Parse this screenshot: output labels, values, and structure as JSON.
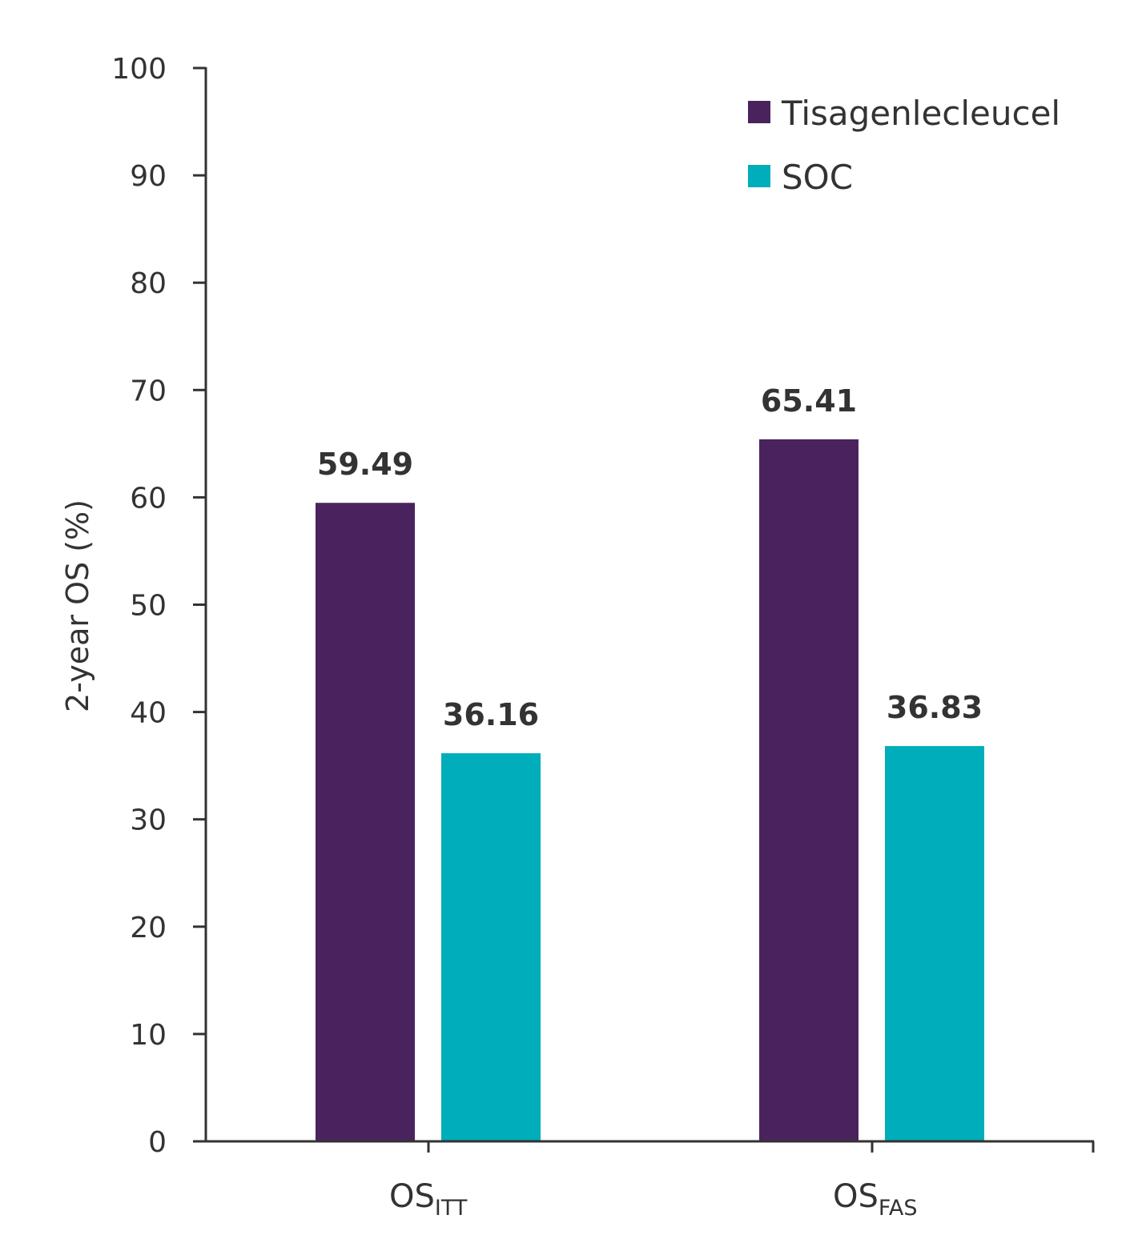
{
  "chart_data": {
    "type": "bar",
    "title": "",
    "xlabel": "",
    "ylabel": "2-year OS (%)",
    "ylim": [
      0,
      100
    ],
    "yticks": [
      0,
      10,
      20,
      30,
      40,
      50,
      60,
      70,
      80,
      90,
      100
    ],
    "categories": [
      {
        "main": "OS",
        "sub": "ITT"
      },
      {
        "main": "OS",
        "sub": "FAS"
      }
    ],
    "series": [
      {
        "name": "Tisagenlecleucel",
        "color": "#4a235e",
        "values": [
          59.49,
          65.41
        ],
        "labels": [
          "59.49",
          "65.41"
        ]
      },
      {
        "name": "SOC",
        "color": "#00adbb",
        "values": [
          36.16,
          36.83
        ],
        "labels": [
          "36.16",
          "36.83"
        ]
      }
    ],
    "legend": "top-right",
    "grid": false
  }
}
